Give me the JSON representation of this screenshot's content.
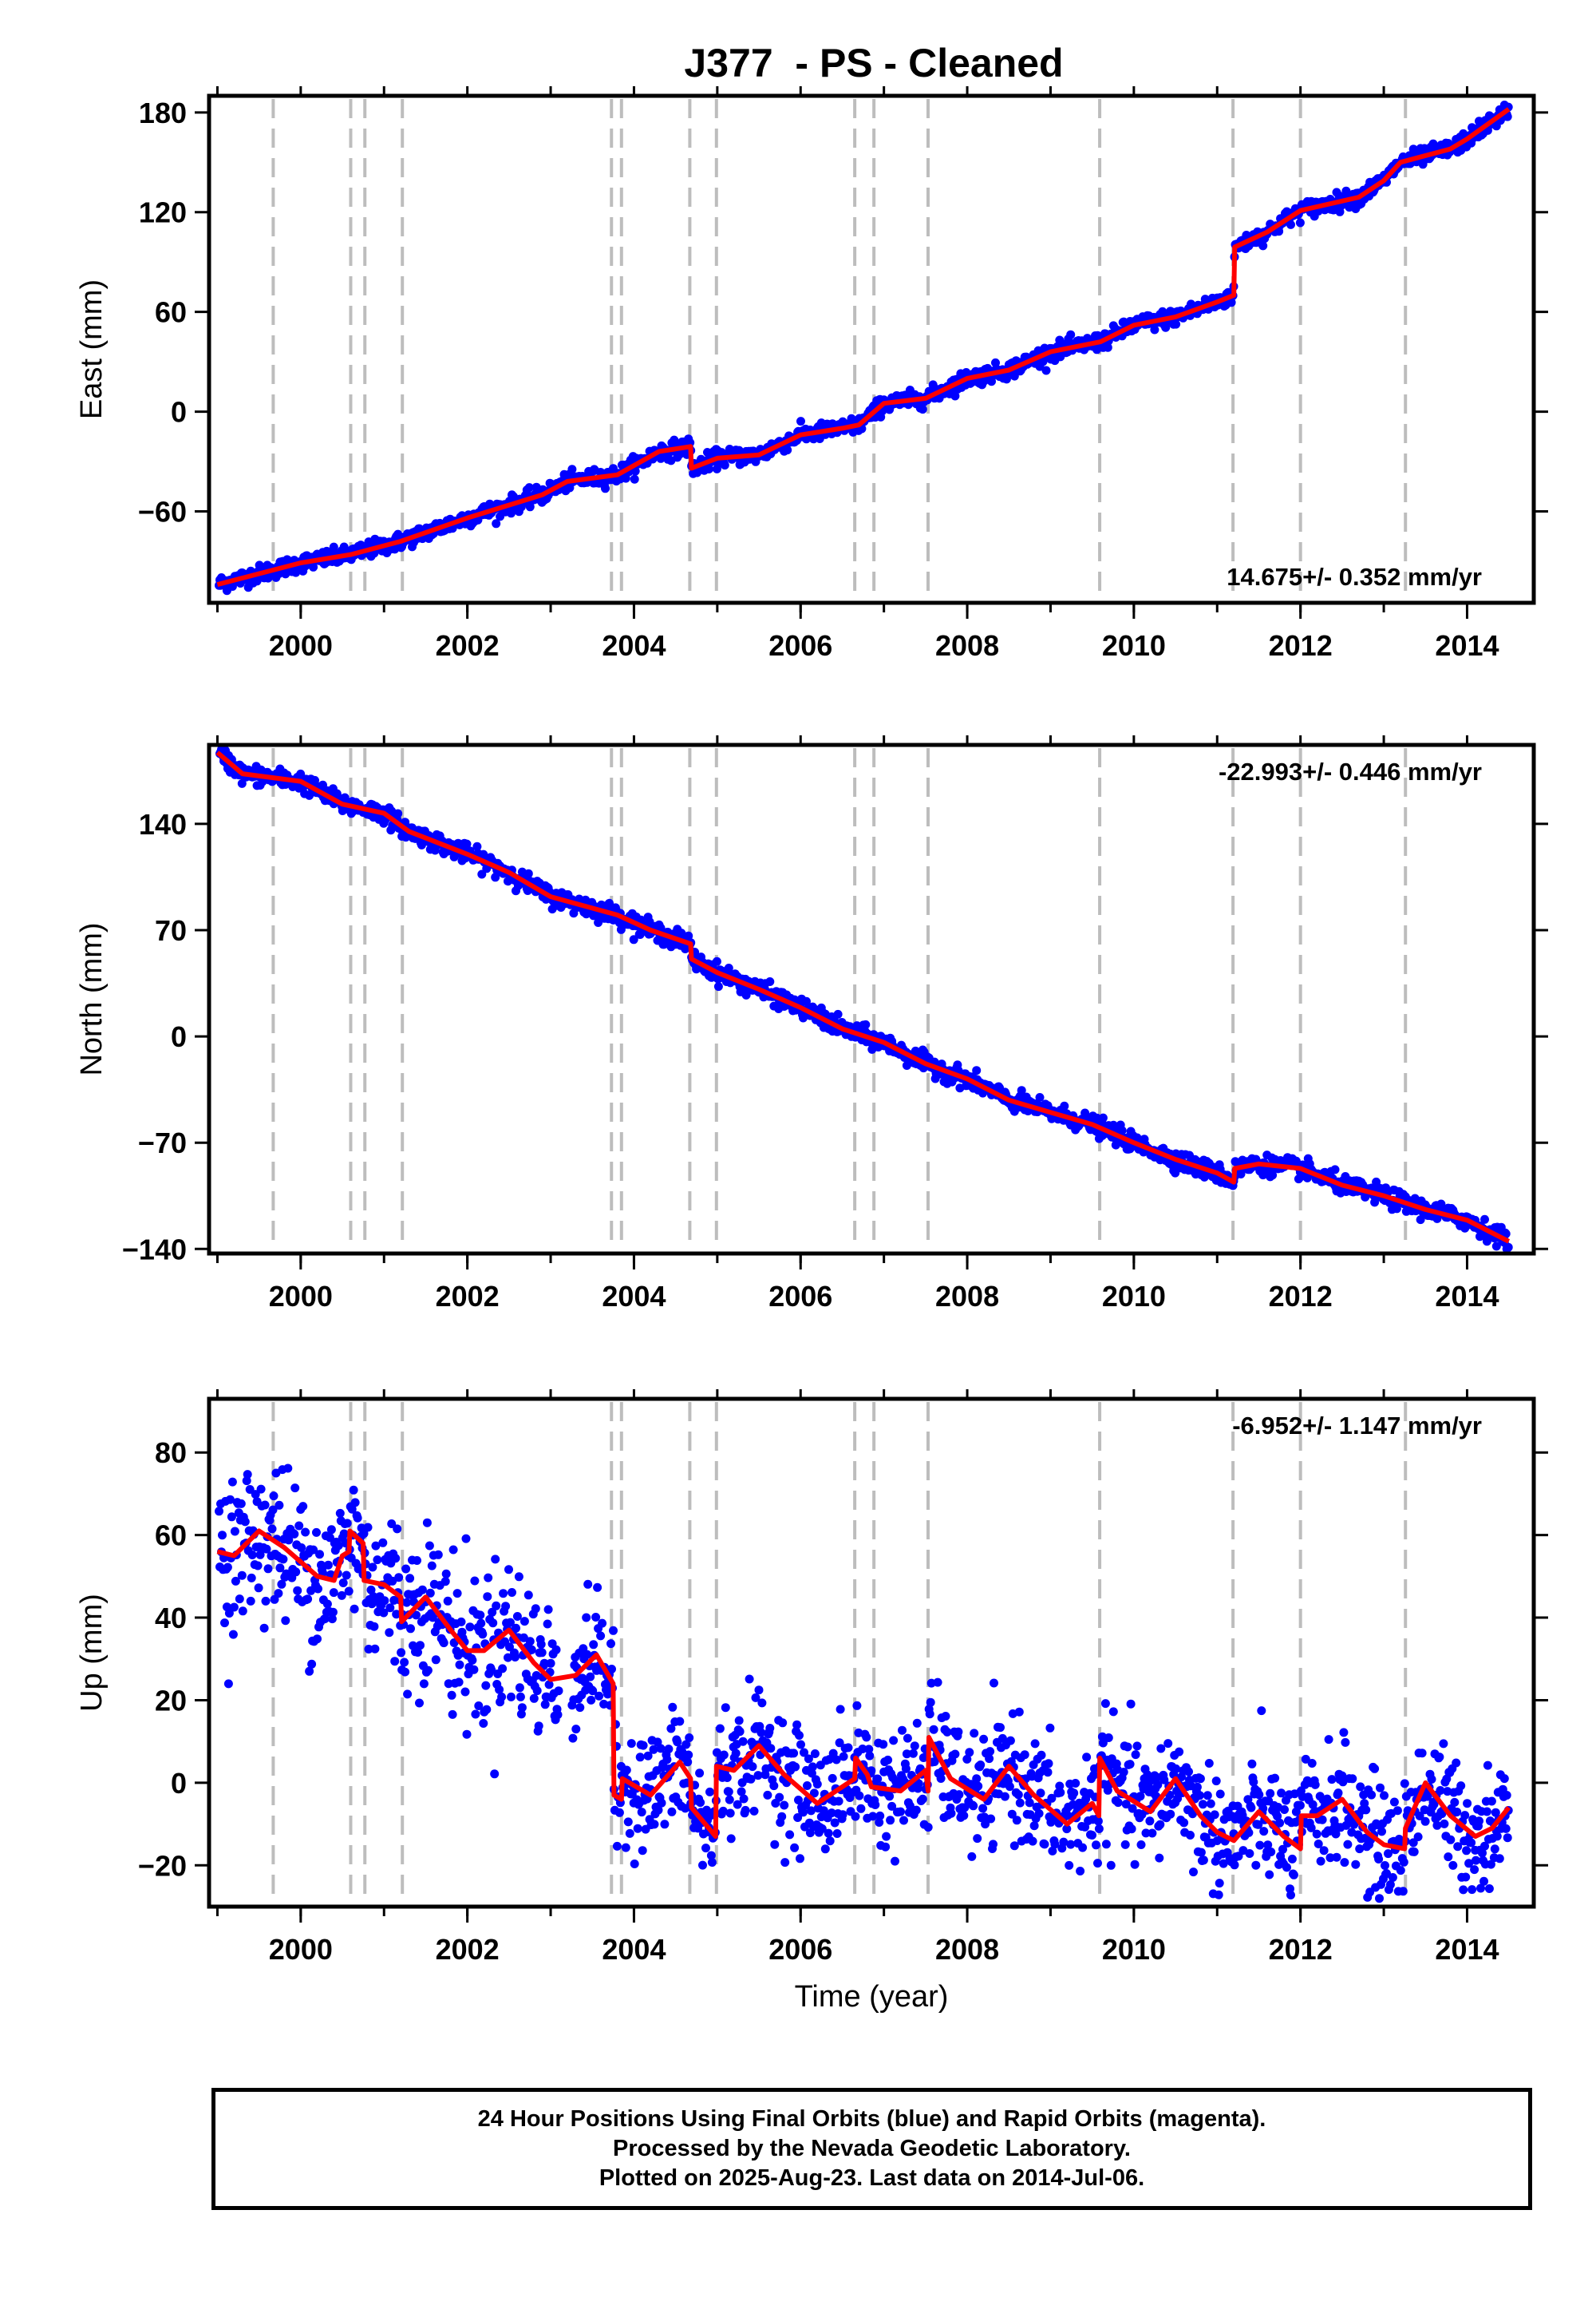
{
  "title": "J377  - PS - Cleaned",
  "footer": {
    "line1": "24 Hour Positions Using Final Orbits (blue) and Rapid Orbits (magenta).",
    "line2": "Processed by the Nevada Geodetic Laboratory.",
    "line3": "Plotted on 2025-Aug-23. Last data on 2014-Jul-06."
  },
  "colors": {
    "points": "#0000ff",
    "model": "#ff0000",
    "steps": "#bdbdbd",
    "frame": "#000000"
  },
  "chart_data": [
    {
      "type": "scatter",
      "ylabel": "East (mm)",
      "rate_label": "14.675+/- 0.352 mm/yr",
      "rate_position": "bottom-right",
      "xlim": [
        1998.9,
        2014.8
      ],
      "ylim": [
        -115,
        190
      ],
      "yticks": [
        -60,
        0,
        60,
        120,
        180
      ],
      "ytick_labels": [
        "−60",
        "0",
        "60",
        "120",
        "180"
      ],
      "xticks": [
        2000,
        2002,
        2004,
        2006,
        2008,
        2010,
        2012,
        2014
      ],
      "xtick_labels": [
        "2000",
        "2002",
        "2004",
        "2006",
        "2008",
        "2010",
        "2012",
        "2014"
      ],
      "point_scatter_mm": 2.5,
      "model_line": [
        [
          1999.0,
          -104
        ],
        [
          2000.0,
          -91
        ],
        [
          2000.6,
          -86
        ],
        [
          2001.2,
          -78
        ],
        [
          2002.0,
          -64
        ],
        [
          2002.9,
          -50
        ],
        [
          2003.2,
          -42
        ],
        [
          2003.8,
          -38
        ],
        [
          2004.3,
          -24
        ],
        [
          2004.68,
          -21
        ],
        [
          2004.69,
          -34
        ],
        [
          2005.0,
          -28
        ],
        [
          2005.5,
          -26
        ],
        [
          2006.0,
          -14
        ],
        [
          2006.5,
          -10
        ],
        [
          2006.7,
          -8
        ],
        [
          2007.0,
          5
        ],
        [
          2007.5,
          8
        ],
        [
          2008.0,
          20
        ],
        [
          2008.5,
          25
        ],
        [
          2009.0,
          36
        ],
        [
          2009.6,
          42
        ],
        [
          2010.0,
          52
        ],
        [
          2010.5,
          57
        ],
        [
          2011.0,
          66
        ],
        [
          2011.2,
          70
        ],
        [
          2011.21,
          99
        ],
        [
          2011.6,
          108
        ],
        [
          2012.0,
          121
        ],
        [
          2012.7,
          129
        ],
        [
          2013.0,
          139
        ],
        [
          2013.2,
          150
        ],
        [
          2013.8,
          158
        ],
        [
          2014.0,
          164
        ],
        [
          2014.5,
          182
        ]
      ]
    },
    {
      "type": "scatter",
      "ylabel": "North (mm)",
      "rate_label": "-22.993+/- 0.446 mm/yr",
      "rate_position": "top-right",
      "xlim": [
        1998.9,
        2014.8
      ],
      "ylim": [
        -143,
        192
      ],
      "yticks": [
        -140,
        -70,
        0,
        70,
        140
      ],
      "ytick_labels": [
        "−140",
        "−70",
        "0",
        "70",
        "140"
      ],
      "xticks": [
        2000,
        2002,
        2004,
        2006,
        2008,
        2010,
        2012,
        2014
      ],
      "xtick_labels": [
        "2000",
        "2002",
        "2004",
        "2006",
        "2008",
        "2010",
        "2012",
        "2014"
      ],
      "point_scatter_mm": 3,
      "model_line": [
        [
          1999.0,
          187
        ],
        [
          1999.3,
          173
        ],
        [
          2000.0,
          168
        ],
        [
          2000.5,
          153
        ],
        [
          2001.0,
          147
        ],
        [
          2001.3,
          135
        ],
        [
          2002.0,
          120
        ],
        [
          2002.5,
          108
        ],
        [
          2003.0,
          92
        ],
        [
          2003.8,
          80
        ],
        [
          2004.2,
          70
        ],
        [
          2004.68,
          61
        ],
        [
          2004.69,
          51
        ],
        [
          2005.0,
          42
        ],
        [
          2005.5,
          31
        ],
        [
          2006.0,
          19
        ],
        [
          2006.5,
          5
        ],
        [
          2007.0,
          -4
        ],
        [
          2007.5,
          -18
        ],
        [
          2008.0,
          -28
        ],
        [
          2008.5,
          -42
        ],
        [
          2009.0,
          -50
        ],
        [
          2009.5,
          -58
        ],
        [
          2010.0,
          -70
        ],
        [
          2010.5,
          -81
        ],
        [
          2011.0,
          -90
        ],
        [
          2011.2,
          -96
        ],
        [
          2011.21,
          -87
        ],
        [
          2011.5,
          -84
        ],
        [
          2012.0,
          -87
        ],
        [
          2012.5,
          -98
        ],
        [
          2013.0,
          -105
        ],
        [
          2013.5,
          -114
        ],
        [
          2014.0,
          -121
        ],
        [
          2014.5,
          -135
        ]
      ]
    },
    {
      "type": "scatter",
      "ylabel": "Up (mm)",
      "rate_label": "-6.952+/- 1.147 mm/yr",
      "rate_position": "top-right",
      "xlim": [
        1998.9,
        2014.8
      ],
      "ylim": [
        -30,
        93
      ],
      "yticks": [
        -20,
        0,
        20,
        40,
        60,
        80
      ],
      "ytick_labels": [
        "−20",
        "0",
        "20",
        "40",
        "60",
        "80"
      ],
      "xticks": [
        2000,
        2002,
        2004,
        2006,
        2008,
        2010,
        2012,
        2014
      ],
      "xtick_labels": [
        "2000",
        "2002",
        "2004",
        "2006",
        "2008",
        "2010",
        "2012",
        "2014"
      ],
      "xlabel": "Time (year)",
      "point_scatter_mm": 7,
      "data_gap": [
        2003.1,
        2003.25
      ],
      "model_line": [
        [
          1999.0,
          56
        ],
        [
          1999.2,
          55
        ],
        [
          1999.5,
          61
        ],
        [
          1999.8,
          57
        ],
        [
          2000.2,
          50
        ],
        [
          2000.4,
          49
        ],
        [
          2000.5,
          55
        ],
        [
          2000.58,
          56
        ],
        [
          2000.59,
          61
        ],
        [
          2000.75,
          58
        ],
        [
          2000.76,
          49
        ],
        [
          2001.0,
          48
        ],
        [
          2001.2,
          45
        ],
        [
          2001.21,
          39
        ],
        [
          2001.5,
          45
        ],
        [
          2001.8,
          37
        ],
        [
          2002.0,
          32
        ],
        [
          2002.2,
          32
        ],
        [
          2002.5,
          37
        ],
        [
          2002.8,
          29
        ],
        [
          2003.0,
          25
        ],
        [
          2003.3,
          26
        ],
        [
          2003.55,
          31
        ],
        [
          2003.75,
          24
        ],
        [
          2003.76,
          -3
        ],
        [
          2003.85,
          -4
        ],
        [
          2003.86,
          1
        ],
        [
          2004.2,
          -3
        ],
        [
          2004.55,
          5
        ],
        [
          2004.68,
          1
        ],
        [
          2004.69,
          -6
        ],
        [
          2004.98,
          -13
        ],
        [
          2004.99,
          4
        ],
        [
          2005.2,
          3
        ],
        [
          2005.5,
          9
        ],
        [
          2005.8,
          2
        ],
        [
          2006.2,
          -5
        ],
        [
          2006.5,
          -1
        ],
        [
          2006.65,
          1
        ],
        [
          2006.66,
          6
        ],
        [
          2006.8,
          2
        ],
        [
          2006.85,
          -1
        ],
        [
          2007.2,
          -2
        ],
        [
          2007.5,
          3
        ],
        [
          2007.53,
          -2
        ],
        [
          2007.54,
          11
        ],
        [
          2007.8,
          1
        ],
        [
          2008.2,
          -4
        ],
        [
          2008.5,
          4
        ],
        [
          2008.8,
          -3
        ],
        [
          2009.2,
          -10
        ],
        [
          2009.5,
          -5
        ],
        [
          2009.58,
          -8
        ],
        [
          2009.59,
          6
        ],
        [
          2009.8,
          -2
        ],
        [
          2010.2,
          -7
        ],
        [
          2010.5,
          1
        ],
        [
          2010.8,
          -8
        ],
        [
          2011.0,
          -12
        ],
        [
          2011.2,
          -14
        ],
        [
          2011.5,
          -7
        ],
        [
          2011.8,
          -13
        ],
        [
          2012.0,
          -16
        ],
        [
          2012.01,
          -8
        ],
        [
          2012.2,
          -8
        ],
        [
          2012.5,
          -4
        ],
        [
          2012.8,
          -12
        ],
        [
          2013.0,
          -15
        ],
        [
          2013.25,
          -16
        ],
        [
          2013.26,
          -11
        ],
        [
          2013.5,
          0
        ],
        [
          2013.8,
          -8
        ],
        [
          2014.1,
          -13
        ],
        [
          2014.3,
          -11
        ],
        [
          2014.5,
          -6
        ]
      ]
    }
  ],
  "step_lines": [
    1999.67,
    2000.6,
    2000.77,
    2001.22,
    2003.73,
    2003.85,
    2004.67,
    2004.99,
    2006.65,
    2006.88,
    2007.53,
    2009.59,
    2011.19,
    2012.0,
    2013.26
  ]
}
